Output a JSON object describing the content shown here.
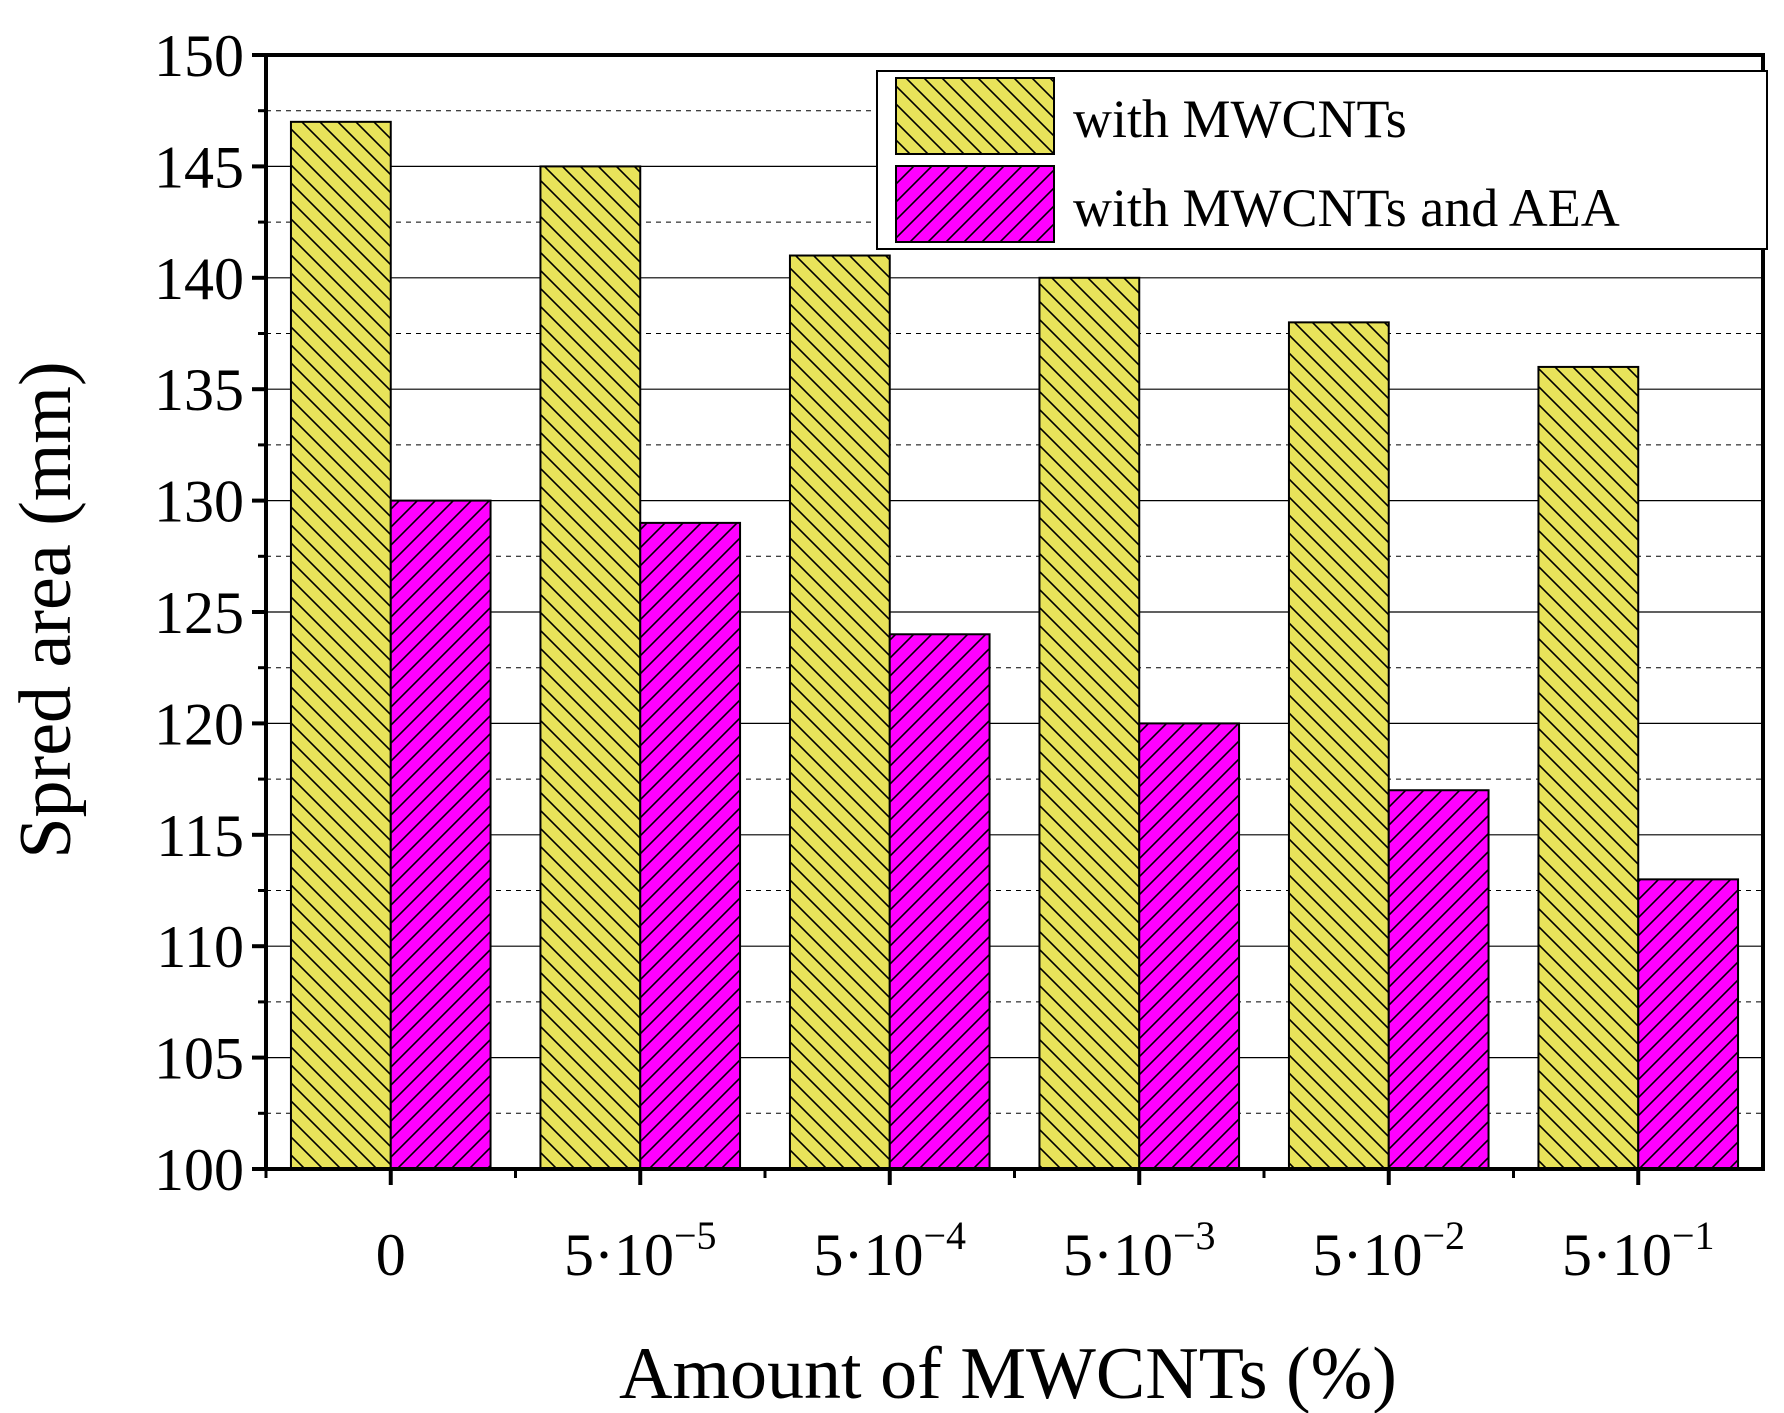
{
  "chart_data": {
    "type": "bar",
    "title": "",
    "xlabel": "Amount of MWCNTs (%)",
    "ylabel": "Spred area (mm)",
    "ylim": [
      100,
      150
    ],
    "yticks": [
      100,
      105,
      110,
      115,
      120,
      125,
      130,
      135,
      140,
      145,
      150
    ],
    "ytick_labels": [
      "100",
      "105",
      "110",
      "115",
      "120",
      "125",
      "130",
      "135",
      "140",
      "145",
      "150"
    ],
    "grid": true,
    "legend_position": "top-right",
    "categories": [
      {
        "base": "0",
        "exp": ""
      },
      {
        "base": "5·10",
        "exp": "−5"
      },
      {
        "base": "5·10",
        "exp": "−4"
      },
      {
        "base": "5·10",
        "exp": "−3"
      },
      {
        "base": "5·10",
        "exp": "−2"
      },
      {
        "base": "5·10",
        "exp": "−1"
      }
    ],
    "series": [
      {
        "name": "with MWCNTs",
        "color": "#e8e35a",
        "hatch": "backslash",
        "values": [
          147,
          145,
          141,
          140,
          138,
          136
        ]
      },
      {
        "name": "with MWCNTs and AEA",
        "color": "#ff00ff",
        "hatch": "slash",
        "values": [
          130,
          129,
          124,
          120,
          117,
          113
        ]
      }
    ]
  }
}
